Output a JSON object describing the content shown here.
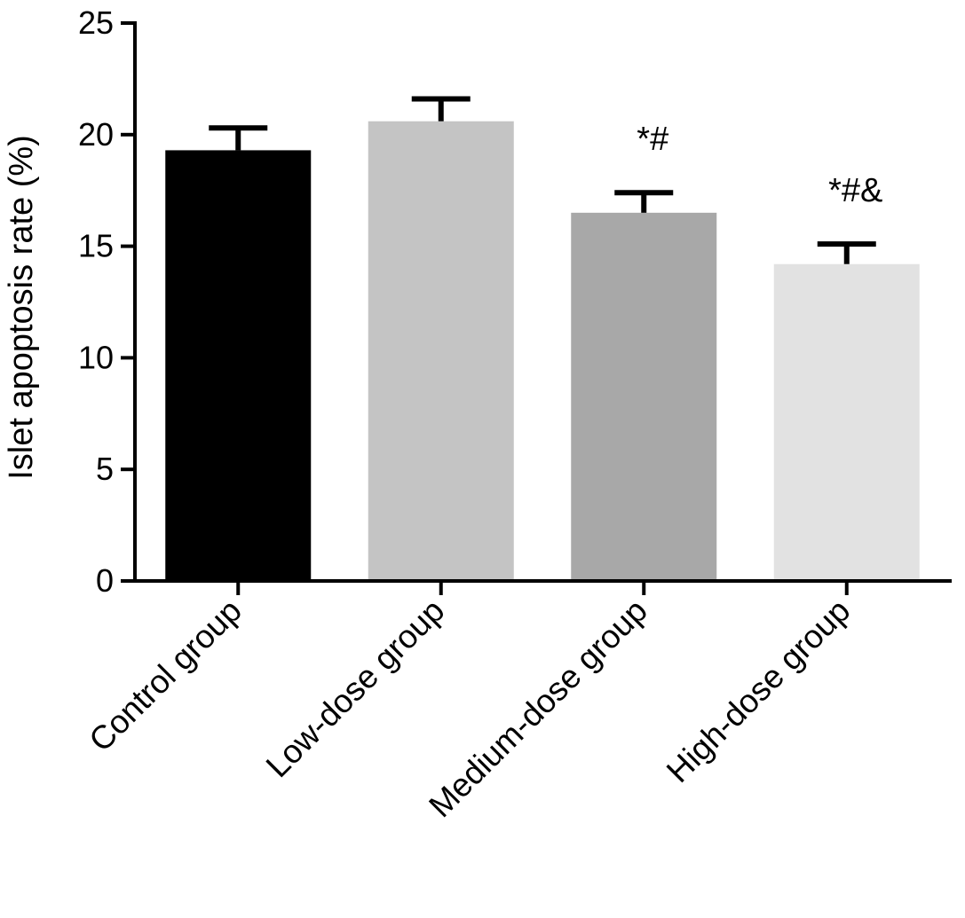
{
  "chart_data": {
    "type": "bar",
    "ylabel": "Islet apoptosis rate (%)",
    "xlabel": "",
    "ylim": [
      0,
      25
    ],
    "yticks": [
      "0",
      "5",
      "10",
      "15",
      "20",
      "25"
    ],
    "categories": [
      "Control group",
      "Low-dose group",
      "Medium-dose group",
      "High-dose group"
    ],
    "values": [
      19.3,
      20.6,
      16.5,
      14.2
    ],
    "errors": [
      1.0,
      1.0,
      0.9,
      0.9
    ],
    "annotations": [
      "",
      "",
      "*#",
      "*#&"
    ],
    "bar_colors": [
      "#000000",
      "#c4c4c4",
      "#a8a8a8",
      "#e2e2e2"
    ],
    "grid": false,
    "legend": "none"
  }
}
